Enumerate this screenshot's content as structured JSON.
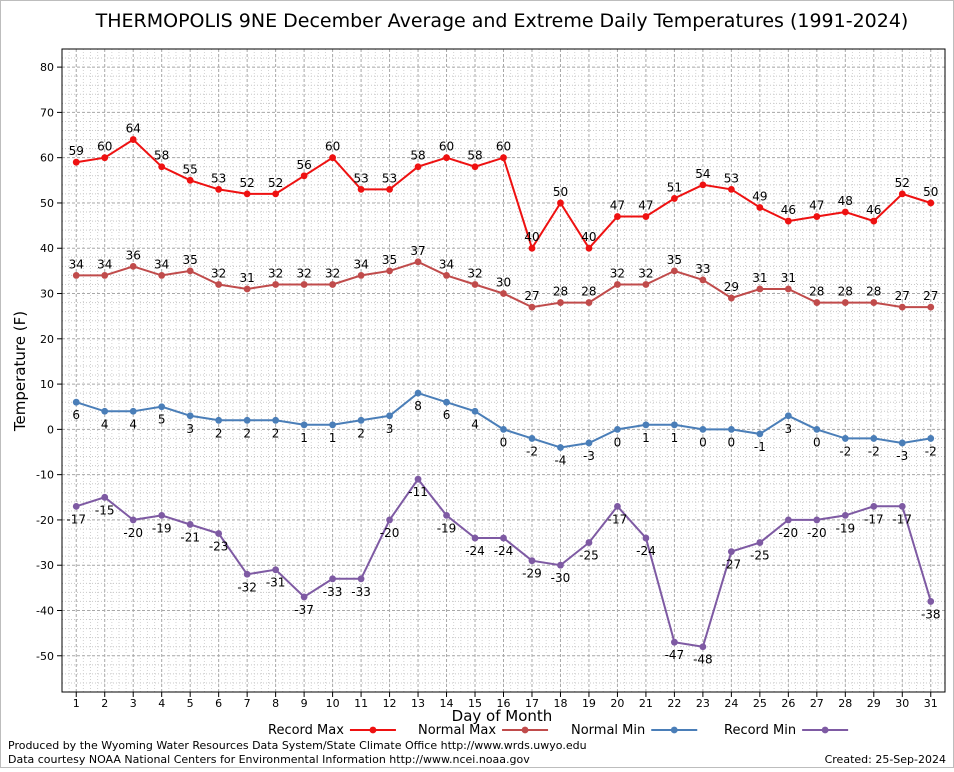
{
  "chart_data": {
    "type": "line",
    "title": "THERMOPOLIS 9NE December Average and Extreme Daily Temperatures (1991-2024)",
    "xlabel": "Day of Month",
    "ylabel": "Temperature (F)",
    "x": [
      1,
      2,
      3,
      4,
      5,
      6,
      7,
      8,
      9,
      10,
      11,
      12,
      13,
      14,
      15,
      16,
      17,
      18,
      19,
      20,
      21,
      22,
      23,
      24,
      25,
      26,
      27,
      28,
      29,
      30,
      31
    ],
    "xlim": [
      0.5,
      31.5
    ],
    "ylim": [
      -58,
      84
    ],
    "yticks": [
      -50,
      -40,
      -30,
      -20,
      -10,
      0,
      10,
      20,
      30,
      40,
      50,
      60,
      70,
      80
    ],
    "grid": true,
    "legend_position": "bottom",
    "series": [
      {
        "name": "Record Max",
        "color": "#ee1111",
        "label_pos": "above",
        "values": [
          59,
          60,
          64,
          58,
          55,
          53,
          52,
          52,
          56,
          60,
          53,
          53,
          58,
          60,
          58,
          60,
          40,
          50,
          40,
          47,
          47,
          51,
          54,
          53,
          49,
          46,
          47,
          48,
          46,
          52,
          50
        ]
      },
      {
        "name": "Normal Max",
        "color": "#c04b4b",
        "label_pos": "above",
        "values": [
          34,
          34,
          36,
          34,
          35,
          32,
          31,
          32,
          32,
          32,
          34,
          35,
          37,
          34,
          32,
          30,
          27,
          28,
          28,
          32,
          32,
          35,
          33,
          29,
          31,
          31,
          28,
          28,
          28,
          27,
          27
        ]
      },
      {
        "name": "Normal Min",
        "color": "#4a7eb8",
        "label_pos": "below",
        "values": [
          6,
          4,
          4,
          5,
          3,
          2,
          2,
          2,
          1,
          1,
          2,
          3,
          8,
          6,
          4,
          0,
          -2,
          -4,
          -3,
          0,
          1,
          1,
          0,
          0,
          -1,
          3,
          0,
          -2,
          -2,
          -3,
          -2
        ]
      },
      {
        "name": "Record Min",
        "color": "#7e5aa3",
        "label_pos": "below",
        "values": [
          -17,
          -15,
          -20,
          -19,
          -21,
          -23,
          -32,
          -31,
          -37,
          -33,
          -33,
          -20,
          -11,
          -19,
          -24,
          -24,
          -29,
          -30,
          -25,
          -17,
          -24,
          -47,
          -48,
          -27,
          -25,
          -20,
          -20,
          -19,
          -17,
          -17,
          -38
        ]
      }
    ]
  },
  "footer": {
    "credit_line1": "Produced by the Wyoming Water Resources Data System/State Climate Office http://www.wrds.uwyo.edu",
    "credit_line2": "Data courtesy NOAA National Centers for Environmental Information http://www.ncei.noaa.gov",
    "created": "Created:  25-Sep-2024"
  }
}
